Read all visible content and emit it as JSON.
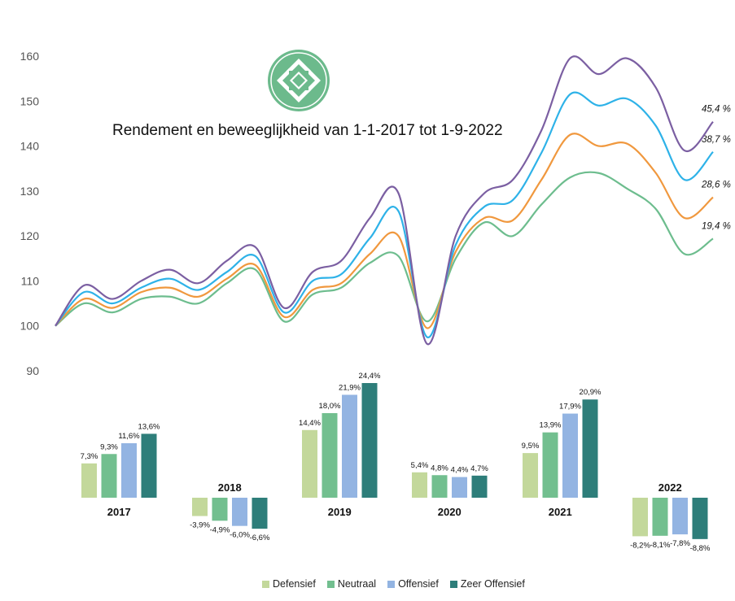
{
  "chart_data": [
    {
      "type": "line",
      "title": "Rendement en beweeglijkheid van 1-1-2017 tot 1-9-2022",
      "ylim": [
        90,
        160
      ],
      "yticks": [
        "90",
        "100",
        "110",
        "120",
        "130",
        "140",
        "150",
        "160"
      ],
      "grid": false,
      "series": [
        {
          "name": "Defensief",
          "color": "#6dbd8e",
          "end_label": "19,4 %",
          "values": [
            100,
            105,
            103,
            106,
            106.5,
            105,
            109.5,
            112.5,
            101,
            107,
            108.5,
            114,
            115.5,
            101,
            115,
            123,
            120,
            127,
            133,
            134,
            130.5,
            126,
            116,
            119.4
          ]
        },
        {
          "name": "Neutraal",
          "color": "#f0983e",
          "end_label": "28,6 %",
          "values": [
            100,
            106,
            104,
            107.5,
            108.5,
            106.5,
            110.5,
            113.5,
            102,
            108,
            109.5,
            116,
            120,
            99.5,
            116.5,
            124,
            123.5,
            132.5,
            142.5,
            140,
            140.5,
            134,
            124,
            128.6
          ]
        },
        {
          "name": "Offensief",
          "color": "#2eb2e8",
          "end_label": "38,7 %",
          "values": [
            100,
            107.5,
            105,
            108.5,
            110.5,
            108,
            112,
            115.5,
            103,
            110,
            111.5,
            119.5,
            125.5,
            97.5,
            118,
            126.5,
            128,
            138.5,
            151.5,
            149,
            150.5,
            144.5,
            132.5,
            138.7
          ]
        },
        {
          "name": "Zeer Offensief",
          "color": "#7b5fa2",
          "end_label": "45,4 %",
          "values": [
            100,
            109,
            106,
            110,
            112.5,
            109.5,
            114.5,
            117.5,
            104,
            112,
            114.5,
            124,
            129.5,
            96,
            120,
            129.5,
            132.5,
            143.5,
            159.5,
            156,
            159.5,
            153,
            139,
            145.4
          ]
        }
      ]
    },
    {
      "type": "bar",
      "categories": [
        "2017",
        "2018",
        "2019",
        "2020",
        "2021",
        "2022"
      ],
      "series": [
        {
          "name": "Defensief",
          "color": "#c3d89b",
          "values": [
            7.3,
            -3.9,
            14.4,
            5.4,
            9.5,
            -8.2
          ],
          "labels": [
            "7,3%",
            "-3,9%",
            "14,4%",
            "5,4%",
            "9,5%",
            "-8,2%"
          ]
        },
        {
          "name": "Neutraal",
          "color": "#72bf8f",
          "values": [
            9.3,
            -4.9,
            18.0,
            4.8,
            13.9,
            -8.1
          ],
          "labels": [
            "9,3%",
            "-4,9%",
            "18,0%",
            "4,8%",
            "13,9%",
            "-8,1%"
          ]
        },
        {
          "name": "Offensief",
          "color": "#93b4e2",
          "values": [
            11.6,
            -6.0,
            21.9,
            4.4,
            17.9,
            -7.8
          ],
          "labels": [
            "11,6%",
            "-6,0%",
            "21,9%",
            "4,4%",
            "17,9%",
            "-7,8%"
          ]
        },
        {
          "name": "Zeer Offensief",
          "color": "#2e7e7a",
          "values": [
            13.6,
            -6.6,
            24.4,
            4.7,
            20.9,
            -8.8
          ],
          "labels": [
            "13,6%",
            "-6,6%",
            "24,4%",
            "4,7%",
            "20,9%",
            "-8,8%"
          ]
        }
      ],
      "legend_position": "bottom"
    }
  ],
  "logo": {
    "name": "diamond-arrows-logo",
    "color": "#6cba8c"
  }
}
